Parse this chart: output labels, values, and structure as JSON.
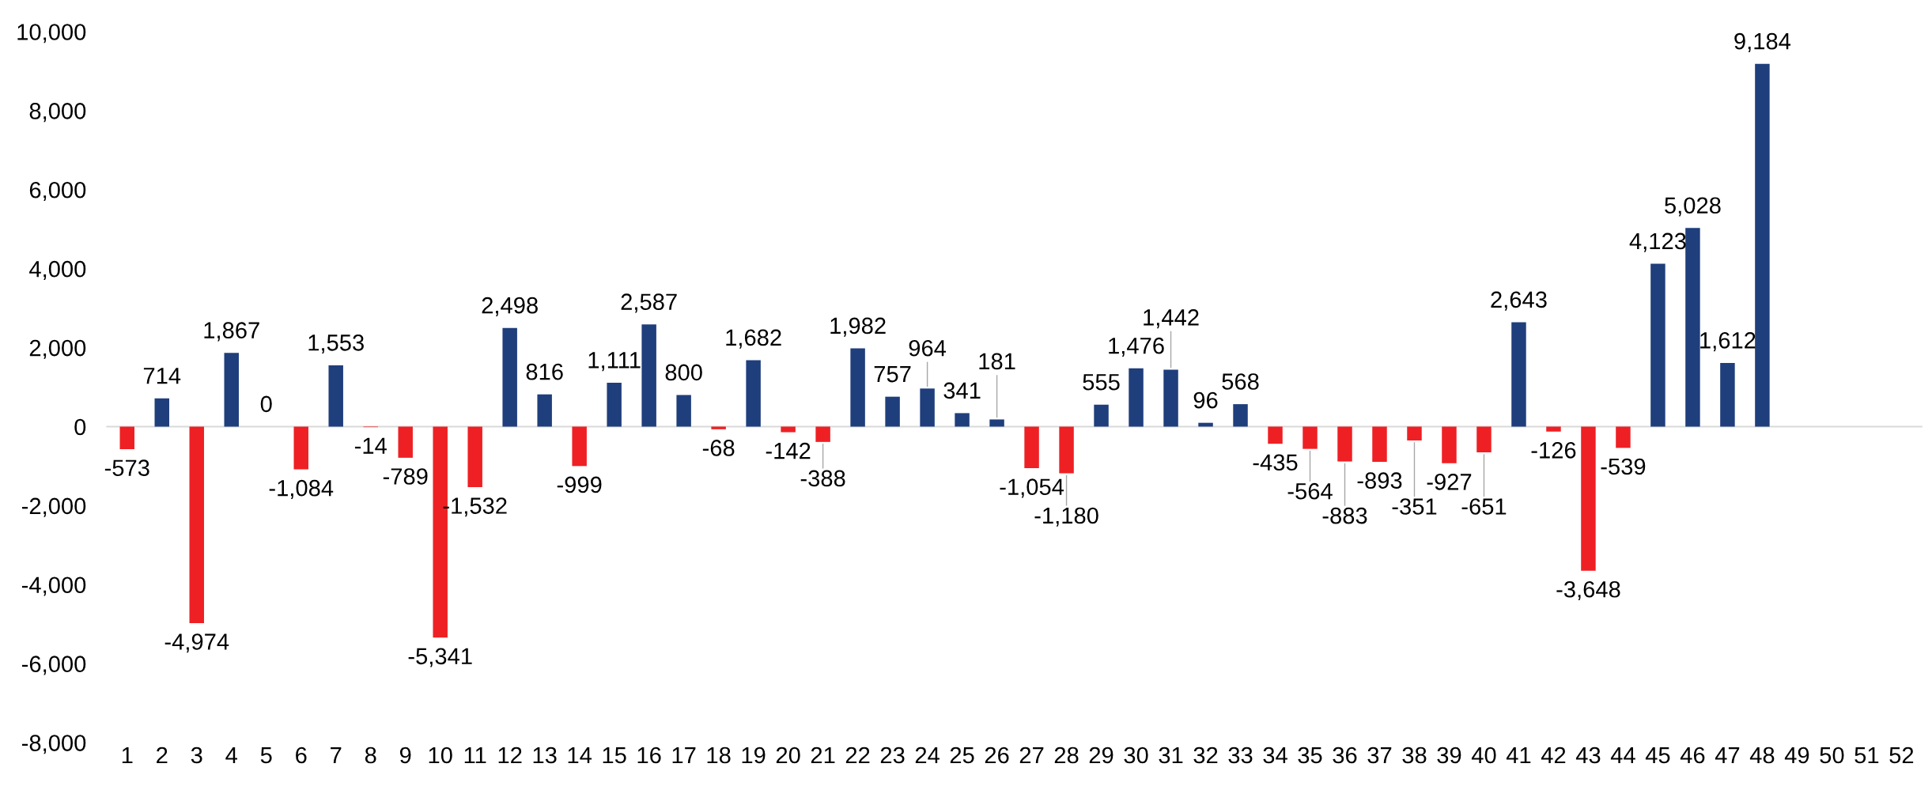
{
  "chart_data": {
    "type": "bar",
    "categories": [
      "1",
      "2",
      "3",
      "4",
      "5",
      "6",
      "7",
      "8",
      "9",
      "10",
      "11",
      "12",
      "13",
      "14",
      "15",
      "16",
      "17",
      "18",
      "19",
      "20",
      "21",
      "22",
      "23",
      "24",
      "25",
      "26",
      "27",
      "28",
      "29",
      "30",
      "31",
      "32",
      "33",
      "34",
      "35",
      "36",
      "37",
      "38",
      "39",
      "40",
      "41",
      "42",
      "43",
      "44",
      "45",
      "46",
      "47",
      "48",
      "49",
      "50",
      "51",
      "52"
    ],
    "values": [
      -573,
      714,
      -4974,
      1867,
      0,
      -1084,
      1553,
      -14,
      -789,
      -5341,
      -1532,
      2498,
      816,
      -999,
      1111,
      2587,
      800,
      -68,
      1682,
      -142,
      -388,
      1982,
      757,
      964,
      341,
      181,
      -1054,
      -1180,
      555,
      1476,
      1442,
      96,
      568,
      -435,
      -564,
      -883,
      -893,
      -351,
      -927,
      -651,
      2643,
      -126,
      -3648,
      -539,
      4123,
      5028,
      1612,
      9184,
      null,
      null,
      null,
      null
    ],
    "value_labels": [
      "-573",
      "714",
      "-4,974",
      "1,867",
      "0",
      "-1,084",
      "1,553",
      "-14",
      "-789",
      "-5,341",
      "-1,532",
      "2,498",
      "816",
      "-999",
      "1,111",
      "2,587",
      "800",
      "-68",
      "1,682",
      "-142",
      "-388",
      "1,982",
      "757",
      "964",
      "341",
      "181",
      "-1,054",
      "-1,180",
      "555",
      "1,476",
      "1,442",
      "96",
      "568",
      "-435",
      "-564",
      "-883",
      "-893",
      "-351",
      "-927",
      "-651",
      "2,643",
      "-126",
      "-3,648",
      "-539",
      "4,123",
      "5,028",
      "1,612",
      "9,184",
      null,
      null,
      null,
      null
    ],
    "colors": [
      "#ee2024",
      "#1f3e7c",
      "#ee2024",
      "#1f3e7c",
      "#1f3e7c",
      "#ee2024",
      "#1f3e7c",
      "#ee2024",
      "#ee2024",
      "#ee2024",
      "#ee2024",
      "#1f3e7c",
      "#1f3e7c",
      "#ee2024",
      "#1f3e7c",
      "#1f3e7c",
      "#1f3e7c",
      "#ee2024",
      "#1f3e7c",
      "#ee2024",
      "#ee2024",
      "#1f3e7c",
      "#1f3e7c",
      "#1f3e7c",
      "#1f3e7c",
      "#1f3e7c",
      "#ee2024",
      "#ee2024",
      "#1f3e7c",
      "#1f3e7c",
      "#1f3e7c",
      "#1f3e7c",
      "#1f3e7c",
      "#ee2024",
      "#ee2024",
      "#ee2024",
      "#ee2024",
      "#ee2024",
      "#ee2024",
      "#ee2024",
      "#1f3e7c",
      "#ee2024",
      "#ee2024",
      "#ee2024",
      "#1f3e7c",
      "#1f3e7c",
      "#1f3e7c",
      "#1f3e7c",
      "#1f3e7c",
      "#1f3e7c",
      "#1f3e7c",
      "#1f3e7c"
    ],
    "ylim": [
      -8000,
      10000
    ],
    "yticks": [
      {
        "value": -8000,
        "label": "-8,000"
      },
      {
        "value": -6000,
        "label": "-6,000"
      },
      {
        "value": -4000,
        "label": "-4,000"
      },
      {
        "value": -2000,
        "label": "-2,000"
      },
      {
        "value": 0,
        "label": "0"
      },
      {
        "value": 2000,
        "label": "2,000"
      },
      {
        "value": 4000,
        "label": "4,000"
      },
      {
        "value": 6000,
        "label": "6,000"
      },
      {
        "value": 8000,
        "label": "8,000"
      },
      {
        "value": 10000,
        "label": "10,000"
      }
    ],
    "ref_lines": [
      {
        "axis": "y",
        "value": 0,
        "color": "#d9d9d9"
      }
    ],
    "grid": false,
    "legend": false
  }
}
